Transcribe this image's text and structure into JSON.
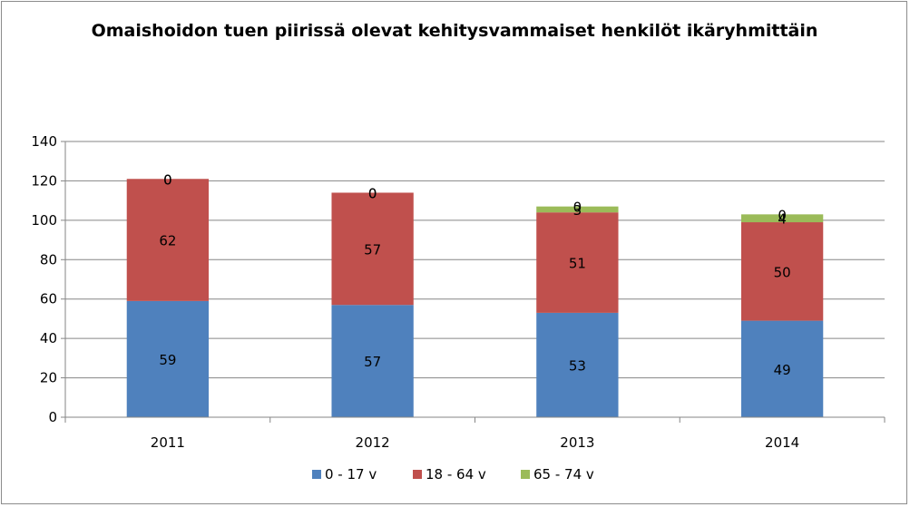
{
  "chart_data": {
    "type": "bar",
    "stacked": true,
    "title": "Omaishoidon  tuen piirissä olevat kehitysvammaiset henkilöt ikäryhmittäin",
    "xlabel": "",
    "ylabel": "",
    "categories": [
      "2011",
      "2012",
      "2013",
      "2014"
    ],
    "ylim": [
      0,
      140
    ],
    "yticks": [
      "0",
      "20",
      "40",
      "60",
      "80",
      "100",
      "120",
      "140"
    ],
    "grid": true,
    "legend_position": "bottom",
    "series": [
      {
        "name": "0 - 17 v",
        "values": [
          59,
          57,
          53,
          49
        ],
        "labels": [
          "59",
          "57",
          "53",
          "49"
        ],
        "color": "#4f81bd"
      },
      {
        "name": "18 - 64 v",
        "values": [
          62,
          57,
          51,
          50
        ],
        "labels": [
          "62",
          "57",
          "51",
          "50"
        ],
        "color": "#c0504d"
      },
      {
        "name": "65 - 74 v",
        "values": [
          0,
          0,
          3,
          4
        ],
        "labels": [
          "0",
          "0",
          "3",
          "4"
        ],
        "color": "#9bbb59"
      }
    ],
    "extra_labels": [
      "0",
      "0",
      "0",
      "0"
    ]
  }
}
